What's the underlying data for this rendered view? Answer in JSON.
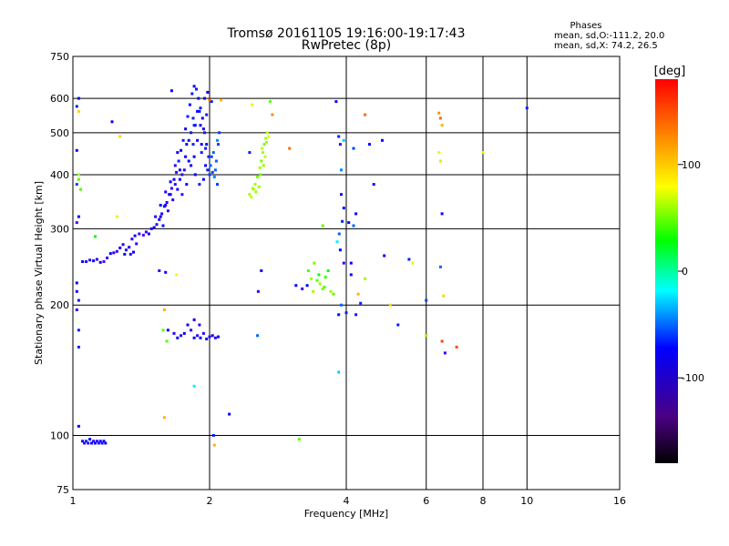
{
  "chart_data": {
    "type": "scatter",
    "title": "Tromsø 20161105 19:16:00-19:17:43",
    "subtitle": "RwPretec (8p)",
    "stats": {
      "header": "Phases",
      "line_o": "mean, sd,O:-111.2, 20.0",
      "line_x": "mean, sd,X:  74.2, 26.5"
    },
    "xlabel": "Frequency [MHz]",
    "ylabel": "Stationary phase Virtual Height [km]",
    "xscale": "log2",
    "yscale": "log",
    "xlim": [
      1,
      16
    ],
    "ylim": [
      75,
      750
    ],
    "x_ticks": [
      1,
      2,
      4,
      6,
      8,
      10,
      16
    ],
    "x_tick_labels": [
      "1",
      "2",
      "4",
      "6",
      "8",
      "10",
      "16"
    ],
    "y_ticks": [
      75,
      100,
      200,
      300,
      400,
      500,
      600,
      750
    ],
    "y_tick_labels": [
      "75",
      "100",
      "200",
      "300",
      "400",
      "500",
      "600",
      "750"
    ],
    "grid": true,
    "colorbar": {
      "label": "[deg]",
      "range": [
        -180,
        180
      ],
      "ticks": [
        100,
        0,
        -100
      ],
      "tick_labels": [
        "100",
        "0",
        "-100"
      ]
    },
    "points_note": "[frequency MHz, height km, phase deg]",
    "points": [
      [
        1.02,
        380,
        -90
      ],
      [
        1.03,
        400,
        80
      ],
      [
        1.03,
        390,
        60
      ],
      [
        1.04,
        370,
        60
      ],
      [
        1.02,
        575,
        -100
      ],
      [
        1.03,
        560,
        120
      ],
      [
        1.03,
        600,
        -110
      ],
      [
        1.02,
        455,
        -110
      ],
      [
        1.03,
        320,
        -110
      ],
      [
        1.02,
        310,
        -130
      ],
      [
        1.02,
        225,
        -110
      ],
      [
        1.02,
        215,
        -110
      ],
      [
        1.03,
        205,
        -120
      ],
      [
        1.02,
        195,
        -120
      ],
      [
        1.03,
        175,
        -100
      ],
      [
        1.03,
        160,
        -100
      ],
      [
        1.03,
        105,
        -110
      ],
      [
        1.05,
        252,
        -110
      ],
      [
        1.07,
        252,
        -120
      ],
      [
        1.09,
        254,
        -120
      ],
      [
        1.11,
        253,
        -110
      ],
      [
        1.13,
        255,
        -120
      ],
      [
        1.15,
        251,
        -110
      ],
      [
        1.17,
        252,
        -130
      ],
      [
        1.19,
        257,
        -120
      ],
      [
        1.21,
        263,
        -110
      ],
      [
        1.23,
        264,
        -120
      ],
      [
        1.25,
        266,
        -120
      ],
      [
        1.27,
        271,
        -110
      ],
      [
        1.29,
        276,
        -120
      ],
      [
        1.31,
        268,
        -120
      ],
      [
        1.33,
        272,
        -110
      ],
      [
        1.35,
        284,
        -120
      ],
      [
        1.37,
        289,
        -110
      ],
      [
        1.38,
        277,
        -120
      ],
      [
        1.4,
        292,
        -120
      ],
      [
        1.34,
        262,
        -120
      ],
      [
        1.3,
        262,
        -110
      ],
      [
        1.36,
        265,
        -110
      ],
      [
        1.12,
        288,
        40
      ],
      [
        1.25,
        320,
        100
      ],
      [
        1.27,
        490,
        120
      ],
      [
        1.22,
        530,
        -110
      ],
      [
        1.05,
        97,
        -110
      ],
      [
        1.06,
        96,
        -120
      ],
      [
        1.07,
        97,
        -100
      ],
      [
        1.08,
        96,
        -120
      ],
      [
        1.09,
        98,
        -110
      ],
      [
        1.1,
        96,
        -110
      ],
      [
        1.11,
        97,
        -120
      ],
      [
        1.12,
        96,
        -110
      ],
      [
        1.13,
        97,
        -120
      ],
      [
        1.14,
        96,
        -100
      ],
      [
        1.15,
        97,
        -110
      ],
      [
        1.16,
        96,
        -120
      ],
      [
        1.17,
        97,
        -110
      ],
      [
        1.18,
        96,
        -110
      ],
      [
        1.43,
        290,
        -130
      ],
      [
        1.45,
        295,
        -120
      ],
      [
        1.47,
        292,
        -110
      ],
      [
        1.49,
        300,
        -120
      ],
      [
        1.51,
        302,
        -110
      ],
      [
        1.53,
        307,
        -120
      ],
      [
        1.55,
        315,
        -110
      ],
      [
        1.57,
        325,
        -120
      ],
      [
        1.59,
        338,
        -110
      ],
      [
        1.61,
        345,
        -120
      ],
      [
        1.63,
        360,
        -110
      ],
      [
        1.65,
        372,
        -120
      ],
      [
        1.67,
        390,
        -110
      ],
      [
        1.69,
        405,
        -120
      ],
      [
        1.71,
        430,
        -100
      ],
      [
        1.73,
        455,
        -110
      ],
      [
        1.75,
        480,
        -100
      ],
      [
        1.77,
        510,
        -110
      ],
      [
        1.79,
        545,
        -100
      ],
      [
        1.81,
        580,
        -110
      ],
      [
        1.83,
        615,
        -100
      ],
      [
        1.85,
        640,
        -110
      ],
      [
        1.87,
        630,
        -100
      ],
      [
        1.89,
        600,
        -110
      ],
      [
        1.91,
        570,
        -100
      ],
      [
        1.93,
        540,
        -110
      ],
      [
        1.95,
        500,
        -100
      ],
      [
        1.97,
        470,
        -110
      ],
      [
        1.99,
        440,
        -100
      ],
      [
        2.01,
        420,
        -80
      ],
      [
        2.03,
        405,
        -90
      ],
      [
        2.05,
        395,
        -70
      ],
      [
        2.07,
        430,
        -80
      ],
      [
        2.09,
        470,
        -90
      ],
      [
        2.1,
        500,
        -90
      ],
      [
        2.02,
        590,
        -100
      ],
      [
        1.98,
        620,
        -110
      ],
      [
        1.52,
        320,
        -120
      ],
      [
        1.56,
        340,
        -110
      ],
      [
        1.6,
        365,
        -120
      ],
      [
        1.64,
        385,
        -110
      ],
      [
        1.68,
        420,
        -120
      ],
      [
        1.72,
        390,
        -110
      ],
      [
        1.76,
        410,
        -120
      ],
      [
        1.8,
        430,
        -110
      ],
      [
        1.84,
        470,
        -100
      ],
      [
        1.88,
        480,
        -110
      ],
      [
        1.92,
        450,
        -100
      ],
      [
        1.96,
        420,
        -110
      ],
      [
        2.0,
        400,
        -90
      ],
      [
        2.04,
        450,
        -80
      ],
      [
        2.08,
        380,
        -90
      ],
      [
        1.7,
        450,
        -110
      ],
      [
        1.78,
        470,
        -110
      ],
      [
        1.82,
        500,
        -100
      ],
      [
        1.86,
        520,
        -110
      ],
      [
        1.9,
        560,
        -100
      ],
      [
        1.94,
        510,
        -110
      ],
      [
        1.74,
        360,
        -120
      ],
      [
        1.66,
        350,
        -120
      ],
      [
        1.58,
        305,
        -110
      ],
      [
        1.62,
        330,
        -120
      ],
      [
        1.86,
        400,
        -110
      ],
      [
        1.9,
        380,
        -100
      ],
      [
        1.94,
        390,
        -110
      ],
      [
        1.98,
        410,
        -100
      ],
      [
        1.82,
        420,
        -110
      ],
      [
        1.78,
        380,
        -110
      ],
      [
        1.74,
        400,
        -120
      ],
      [
        1.7,
        370,
        -110
      ],
      [
        2.06,
        410,
        -80
      ],
      [
        2.02,
        440,
        -90
      ],
      [
        1.95,
        600,
        -110
      ],
      [
        1.88,
        560,
        -110
      ],
      [
        1.84,
        540,
        -100
      ],
      [
        1.91,
        520,
        -110
      ],
      [
        1.97,
        550,
        -100
      ],
      [
        1.65,
        625,
        -110
      ],
      [
        2.0,
        595,
        150
      ],
      [
        2.12,
        595,
        130
      ],
      [
        2.08,
        480,
        -70
      ],
      [
        1.85,
        440,
        -110
      ],
      [
        1.85,
        520,
        -100
      ],
      [
        1.8,
        480,
        -110
      ],
      [
        1.77,
        440,
        -110
      ],
      [
        1.72,
        410,
        -110
      ],
      [
        1.68,
        380,
        -120
      ],
      [
        1.64,
        360,
        -110
      ],
      [
        1.6,
        340,
        -120
      ],
      [
        1.56,
        320,
        -110
      ],
      [
        1.92,
        470,
        -110
      ],
      [
        1.96,
        460,
        -100
      ],
      [
        1.79,
        180,
        -110
      ],
      [
        1.82,
        175,
        -120
      ],
      [
        1.85,
        168,
        -110
      ],
      [
        1.88,
        170,
        -120
      ],
      [
        1.91,
        168,
        -110
      ],
      [
        1.94,
        172,
        -120
      ],
      [
        1.97,
        167,
        -110
      ],
      [
        2.0,
        169,
        -120
      ],
      [
        2.03,
        170,
        -110
      ],
      [
        2.06,
        168,
        -120
      ],
      [
        2.09,
        169,
        -110
      ],
      [
        1.76,
        172,
        -110
      ],
      [
        1.73,
        170,
        -120
      ],
      [
        1.7,
        168,
        -110
      ],
      [
        1.67,
        172,
        -120
      ],
      [
        1.62,
        175,
        -110
      ],
      [
        1.85,
        185,
        -110
      ],
      [
        1.9,
        180,
        -120
      ],
      [
        1.61,
        165,
        60
      ],
      [
        1.58,
        175,
        60
      ],
      [
        1.55,
        240,
        -120
      ],
      [
        1.6,
        238,
        -110
      ],
      [
        1.59,
        195,
        130
      ],
      [
        1.69,
        235,
        110
      ],
      [
        1.85,
        130,
        -40
      ],
      [
        1.59,
        110,
        130
      ],
      [
        2.05,
        95,
        130
      ],
      [
        2.04,
        100,
        -100
      ],
      [
        2.21,
        112,
        -110
      ],
      [
        2.45,
        360,
        80
      ],
      [
        2.5,
        370,
        90
      ],
      [
        2.52,
        380,
        80
      ],
      [
        2.55,
        395,
        70
      ],
      [
        2.58,
        415,
        80
      ],
      [
        2.6,
        430,
        70
      ],
      [
        2.62,
        450,
        80
      ],
      [
        2.64,
        470,
        70
      ],
      [
        2.66,
        485,
        80
      ],
      [
        2.68,
        500,
        90
      ],
      [
        2.47,
        355,
        90
      ],
      [
        2.53,
        365,
        80
      ],
      [
        2.57,
        375,
        80
      ],
      [
        2.59,
        400,
        70
      ],
      [
        2.63,
        420,
        80
      ],
      [
        2.61,
        460,
        90
      ],
      [
        2.65,
        440,
        90
      ],
      [
        2.67,
        475,
        80
      ],
      [
        2.7,
        490,
        100
      ],
      [
        2.49,
        372,
        80
      ],
      [
        2.45,
        450,
        -100
      ],
      [
        2.48,
        580,
        100
      ],
      [
        2.72,
        590,
        60
      ],
      [
        2.75,
        550,
        140
      ],
      [
        2.6,
        240,
        -110
      ],
      [
        2.56,
        215,
        -120
      ],
      [
        3.0,
        460,
        150
      ],
      [
        2.55,
        170,
        -80
      ],
      [
        3.1,
        222,
        -110
      ],
      [
        3.2,
        218,
        -120
      ],
      [
        3.3,
        240,
        60
      ],
      [
        3.35,
        230,
        80
      ],
      [
        3.4,
        250,
        70
      ],
      [
        3.45,
        228,
        60
      ],
      [
        3.5,
        224,
        80
      ],
      [
        3.55,
        218,
        70
      ],
      [
        3.6,
        232,
        50
      ],
      [
        3.65,
        240,
        30
      ],
      [
        3.7,
        215,
        80
      ],
      [
        3.75,
        212,
        60
      ],
      [
        3.28,
        222,
        -110
      ],
      [
        3.38,
        215,
        80
      ],
      [
        3.48,
        235,
        40
      ],
      [
        3.58,
        220,
        60
      ],
      [
        3.15,
        98,
        60
      ],
      [
        3.55,
        305,
        60
      ],
      [
        3.8,
        590,
        -110
      ],
      [
        3.85,
        490,
        -100
      ],
      [
        3.88,
        470,
        -100
      ],
      [
        3.82,
        280,
        -40
      ],
      [
        3.86,
        292,
        -80
      ],
      [
        3.9,
        360,
        -110
      ],
      [
        3.95,
        335,
        -110
      ],
      [
        3.92,
        312,
        -100
      ],
      [
        3.88,
        268,
        -110
      ],
      [
        3.95,
        250,
        -120
      ],
      [
        3.85,
        190,
        -110
      ],
      [
        3.9,
        200,
        -80
      ],
      [
        4.0,
        192,
        -100
      ],
      [
        4.1,
        235,
        -110
      ],
      [
        4.2,
        190,
        -120
      ],
      [
        4.25,
        212,
        130
      ],
      [
        4.3,
        202,
        -100
      ],
      [
        4.4,
        230,
        80
      ],
      [
        3.85,
        140,
        -50
      ],
      [
        4.1,
        250,
        -110
      ],
      [
        4.2,
        325,
        -110
      ],
      [
        4.15,
        305,
        -80
      ],
      [
        3.9,
        410,
        -70
      ],
      [
        4.05,
        310,
        -110
      ],
      [
        4.4,
        550,
        150
      ],
      [
        4.5,
        470,
        -110
      ],
      [
        4.6,
        380,
        -110
      ],
      [
        4.8,
        480,
        -110
      ],
      [
        4.85,
        260,
        -110
      ],
      [
        5.0,
        200,
        120
      ],
      [
        5.2,
        180,
        -100
      ],
      [
        5.5,
        255,
        -100
      ],
      [
        5.6,
        250,
        100
      ],
      [
        6.0,
        205,
        -90
      ],
      [
        6.0,
        170,
        80
      ],
      [
        6.4,
        555,
        140
      ],
      [
        6.45,
        540,
        150
      ],
      [
        6.5,
        520,
        130
      ],
      [
        6.4,
        450,
        100
      ],
      [
        6.45,
        430,
        90
      ],
      [
        6.5,
        325,
        -110
      ],
      [
        6.45,
        245,
        -80
      ],
      [
        6.55,
        210,
        120
      ],
      [
        6.5,
        165,
        160
      ],
      [
        6.6,
        155,
        -120
      ],
      [
        7.0,
        160,
        160
      ],
      [
        8.0,
        450,
        100
      ],
      [
        10.0,
        570,
        -100
      ],
      [
        3.95,
        480,
        -50
      ],
      [
        4.15,
        460,
        -90
      ]
    ]
  }
}
